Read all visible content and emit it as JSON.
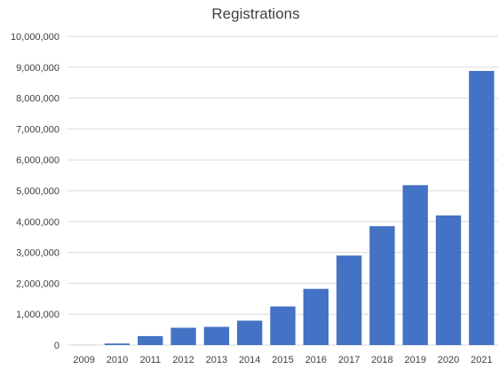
{
  "chart_data": {
    "type": "bar",
    "title": "Registrations",
    "xlabel": "",
    "ylabel": "",
    "categories": [
      "2009",
      "2010",
      "2011",
      "2012",
      "2013",
      "2014",
      "2015",
      "2016",
      "2017",
      "2018",
      "2019",
      "2020",
      "2021"
    ],
    "values": [
      2000,
      50000,
      290000,
      560000,
      590000,
      790000,
      1250000,
      1820000,
      2900000,
      3850000,
      5180000,
      4200000,
      8880000
    ],
    "ylim": [
      0,
      10000000
    ],
    "y_ticks": [
      "0",
      "1,000,000",
      "2,000,000",
      "3,000,000",
      "4,000,000",
      "5,000,000",
      "6,000,000",
      "7,000,000",
      "8,000,000",
      "9,000,000",
      "10,000,000"
    ],
    "grid": true,
    "legend": "none",
    "colors": {
      "bar": "#4472c4",
      "grid": "#d9d9d9",
      "text": "#404040"
    }
  }
}
